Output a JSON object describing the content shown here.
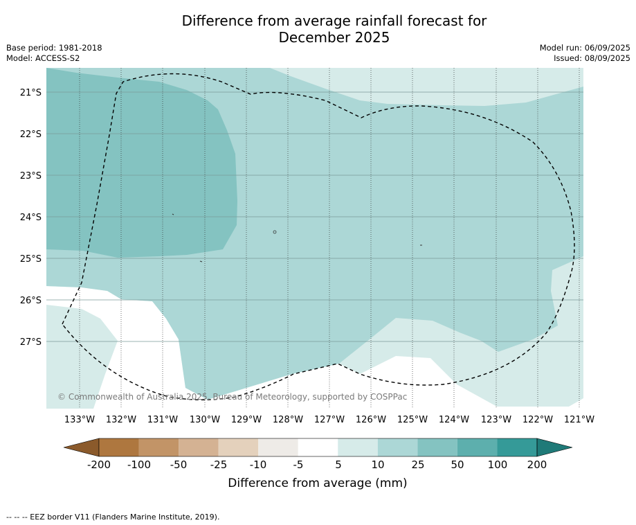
{
  "title_line1": "Difference from average rainfall forecast for",
  "title_line2": "December 2025",
  "base_period": "Base period: 1981-2018",
  "model": "Model: ACCESS-S2",
  "model_run": "Model run: 06/09/2025",
  "issued": "Issued: 08/09/2025",
  "copyright": "© Commonwealth of Australia 2025, Bureau of Meteorology, supported by COSPPac",
  "map": {
    "lat_labels": [
      "21°S",
      "22°S",
      "23°S",
      "24°S",
      "25°S",
      "26°S",
      "27°S"
    ],
    "lon_labels": [
      "133°W",
      "132°W",
      "131°W",
      "130°W",
      "129°W",
      "128°W",
      "127°W",
      "126°W",
      "125°W",
      "124°W",
      "123°W",
      "122°W",
      "121°W"
    ]
  },
  "colorbar": {
    "ticks": [
      "-200",
      "-100",
      "-50",
      "-25",
      "-10",
      "-5",
      "5",
      "10",
      "25",
      "50",
      "100",
      "200"
    ],
    "colors": [
      "#8b5a2b",
      "#ae773f",
      "#c29467",
      "#d4b293",
      "#e4d1bc",
      "#eeebe7",
      "#ffffff",
      "#d6ebe9",
      "#acd7d6",
      "#84c3c1",
      "#5dafad",
      "#359a98",
      "#1f7a78"
    ],
    "label": "Difference from average (mm)"
  },
  "legend_note": "--  --  -- EEZ border V11 (Flanders Marine Institute, 2019)."
}
